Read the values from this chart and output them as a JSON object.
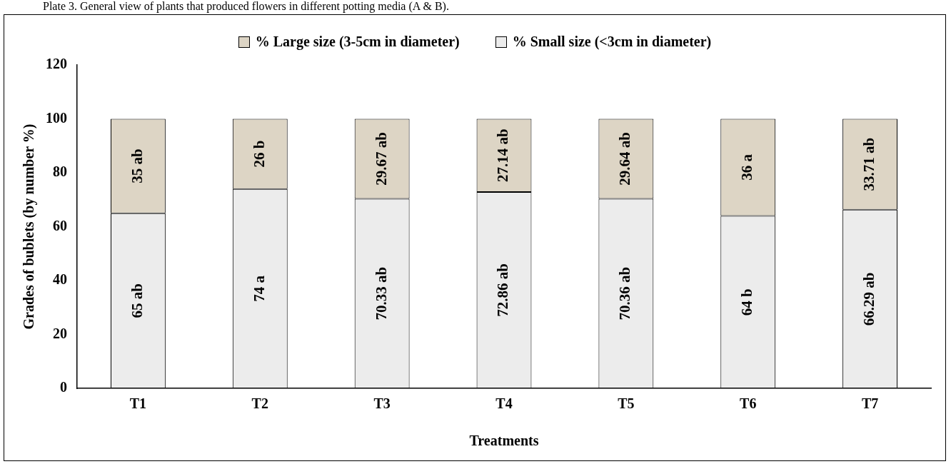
{
  "chart_data": {
    "type": "bar",
    "stacked": true,
    "annotations": [
      "Plate 3. General view of plants that produced flowers in different potting media (A & B)."
    ],
    "xlabel": "Treatments",
    "ylabel": "Grades of bublets (by number %)",
    "categories": [
      "T1",
      "T2",
      "T3",
      "T4",
      "T5",
      "T6",
      "T7"
    ],
    "series": [
      {
        "name": "% Small size (<3cm in diameter)",
        "color": "#ececec",
        "values": [
          65,
          74,
          70.33,
          72.86,
          70.36,
          64,
          66.29
        ],
        "value_labels": [
          "65 ab",
          "74 a",
          "70.33 ab",
          "72.86 ab",
          "70.36 ab",
          "64 b",
          "66.29 ab"
        ]
      },
      {
        "name": "% Large size (3-5cm in diameter)",
        "color": "#ddd5c5",
        "values": [
          35,
          26,
          29.67,
          27.14,
          29.64,
          36,
          33.71
        ],
        "value_labels": [
          "35 ab",
          "26 b",
          "29.67 ab",
          "27.14 ab",
          "29.64 ab",
          "36 a",
          "33.71 ab"
        ]
      }
    ],
    "ylim": [
      0,
      120
    ],
    "yticks": [
      0,
      20,
      40,
      60,
      80,
      100,
      120
    ],
    "grid": false,
    "legend": "top"
  }
}
